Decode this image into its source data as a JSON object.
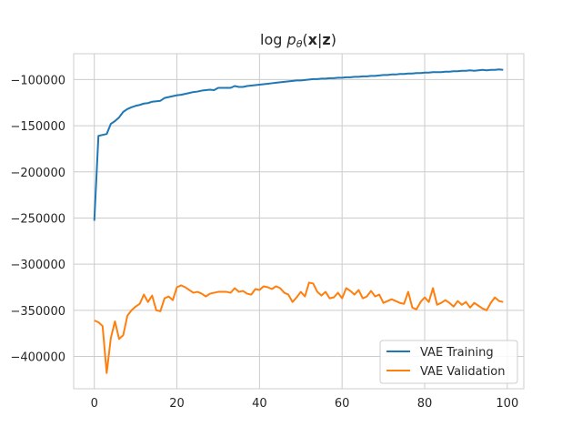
{
  "chart_data": {
    "type": "line",
    "title": "log pθ(x|z)",
    "title_parts": {
      "pre": "log ",
      "p": "p",
      "sub": "θ",
      "open": "(",
      "x": "x",
      "bar": "|",
      "z": "z",
      "close": ")"
    },
    "xlabel": "",
    "ylabel": "",
    "xlim": [
      -5,
      104
    ],
    "ylim": [
      -435000,
      -72000
    ],
    "x_ticks": [
      0,
      20,
      40,
      60,
      80,
      100
    ],
    "x_tick_labels": [
      "0",
      "20",
      "40",
      "60",
      "80",
      "100"
    ],
    "y_ticks": [
      -100000,
      -150000,
      -200000,
      -250000,
      -300000,
      -350000,
      -400000
    ],
    "y_tick_labels": [
      "−100000",
      "−150000",
      "−200000",
      "−250000",
      "−300000",
      "−350000",
      "−400000"
    ],
    "grid": true,
    "legend_position": "lower-right",
    "x": [
      0,
      1,
      2,
      3,
      4,
      5,
      6,
      7,
      8,
      9,
      10,
      11,
      12,
      13,
      14,
      15,
      16,
      17,
      18,
      19,
      20,
      21,
      22,
      23,
      24,
      25,
      26,
      27,
      28,
      29,
      30,
      31,
      32,
      33,
      34,
      35,
      36,
      37,
      38,
      39,
      40,
      41,
      42,
      43,
      44,
      45,
      46,
      47,
      48,
      49,
      50,
      51,
      52,
      53,
      54,
      55,
      56,
      57,
      58,
      59,
      60,
      61,
      62,
      63,
      64,
      65,
      66,
      67,
      68,
      69,
      70,
      71,
      72,
      73,
      74,
      75,
      76,
      77,
      78,
      79,
      80,
      81,
      82,
      83,
      84,
      85,
      86,
      87,
      88,
      89,
      90,
      91,
      92,
      93,
      94,
      95,
      96,
      97,
      98,
      99
    ],
    "series": [
      {
        "name": "VAE Training",
        "color": "#1f77b4",
        "values": [
          -253000,
          -161000,
          -160000,
          -159000,
          -148000,
          -145000,
          -141000,
          -135000,
          -132000,
          -130000,
          -128500,
          -127500,
          -126000,
          -125500,
          -124000,
          -123500,
          -123000,
          -120000,
          -119000,
          -118000,
          -117000,
          -116500,
          -115500,
          -114500,
          -113500,
          -113000,
          -112000,
          -111500,
          -111000,
          -111500,
          -109000,
          -109000,
          -109000,
          -109000,
          -107000,
          -108000,
          -108000,
          -107000,
          -106500,
          -106000,
          -105500,
          -105000,
          -104500,
          -104000,
          -103500,
          -103000,
          -102500,
          -102000,
          -101500,
          -101000,
          -101000,
          -100500,
          -100000,
          -99500,
          -99500,
          -99000,
          -99000,
          -98500,
          -98500,
          -98000,
          -98000,
          -97500,
          -97500,
          -97000,
          -97000,
          -96500,
          -96500,
          -96000,
          -96000,
          -95500,
          -95000,
          -95000,
          -94500,
          -94500,
          -94000,
          -94000,
          -93500,
          -93500,
          -93000,
          -93000,
          -92500,
          -92500,
          -92000,
          -92000,
          -92000,
          -91500,
          -91500,
          -91000,
          -91000,
          -90500,
          -90500,
          -90000,
          -90500,
          -90000,
          -89500,
          -90000,
          -89500,
          -89500,
          -89000,
          -89500
        ]
      },
      {
        "name": "VAE Validation",
        "color": "#ff7f0e",
        "values": [
          -361000,
          -363000,
          -367000,
          -418000,
          -380000,
          -362000,
          -381000,
          -377000,
          -356000,
          -350000,
          -346000,
          -343000,
          -333000,
          -341000,
          -334000,
          -350000,
          -351000,
          -337000,
          -335000,
          -339000,
          -325000,
          -323000,
          -325000,
          -328000,
          -331000,
          -330000,
          -332000,
          -335000,
          -332000,
          -331000,
          -330000,
          -330000,
          -330000,
          -331000,
          -326000,
          -330000,
          -329000,
          -332000,
          -333000,
          -327000,
          -328000,
          -324000,
          -325000,
          -327000,
          -324000,
          -326000,
          -331000,
          -333000,
          -341000,
          -336000,
          -330000,
          -335000,
          -320000,
          -321000,
          -330000,
          -334000,
          -330000,
          -337000,
          -336000,
          -331000,
          -337000,
          -326000,
          -329000,
          -333000,
          -328000,
          -337000,
          -335000,
          -329000,
          -335000,
          -333000,
          -342000,
          -340000,
          -338000,
          -340000,
          -342000,
          -343000,
          -330000,
          -347000,
          -349000,
          -341000,
          -336000,
          -341000,
          -326000,
          -344000,
          -342000,
          -339000,
          -342000,
          -346000,
          -340000,
          -344000,
          -341000,
          -347000,
          -342000,
          -345000,
          -348000,
          -350000,
          -342000,
          -336000,
          -340000,
          -341000
        ]
      }
    ]
  }
}
